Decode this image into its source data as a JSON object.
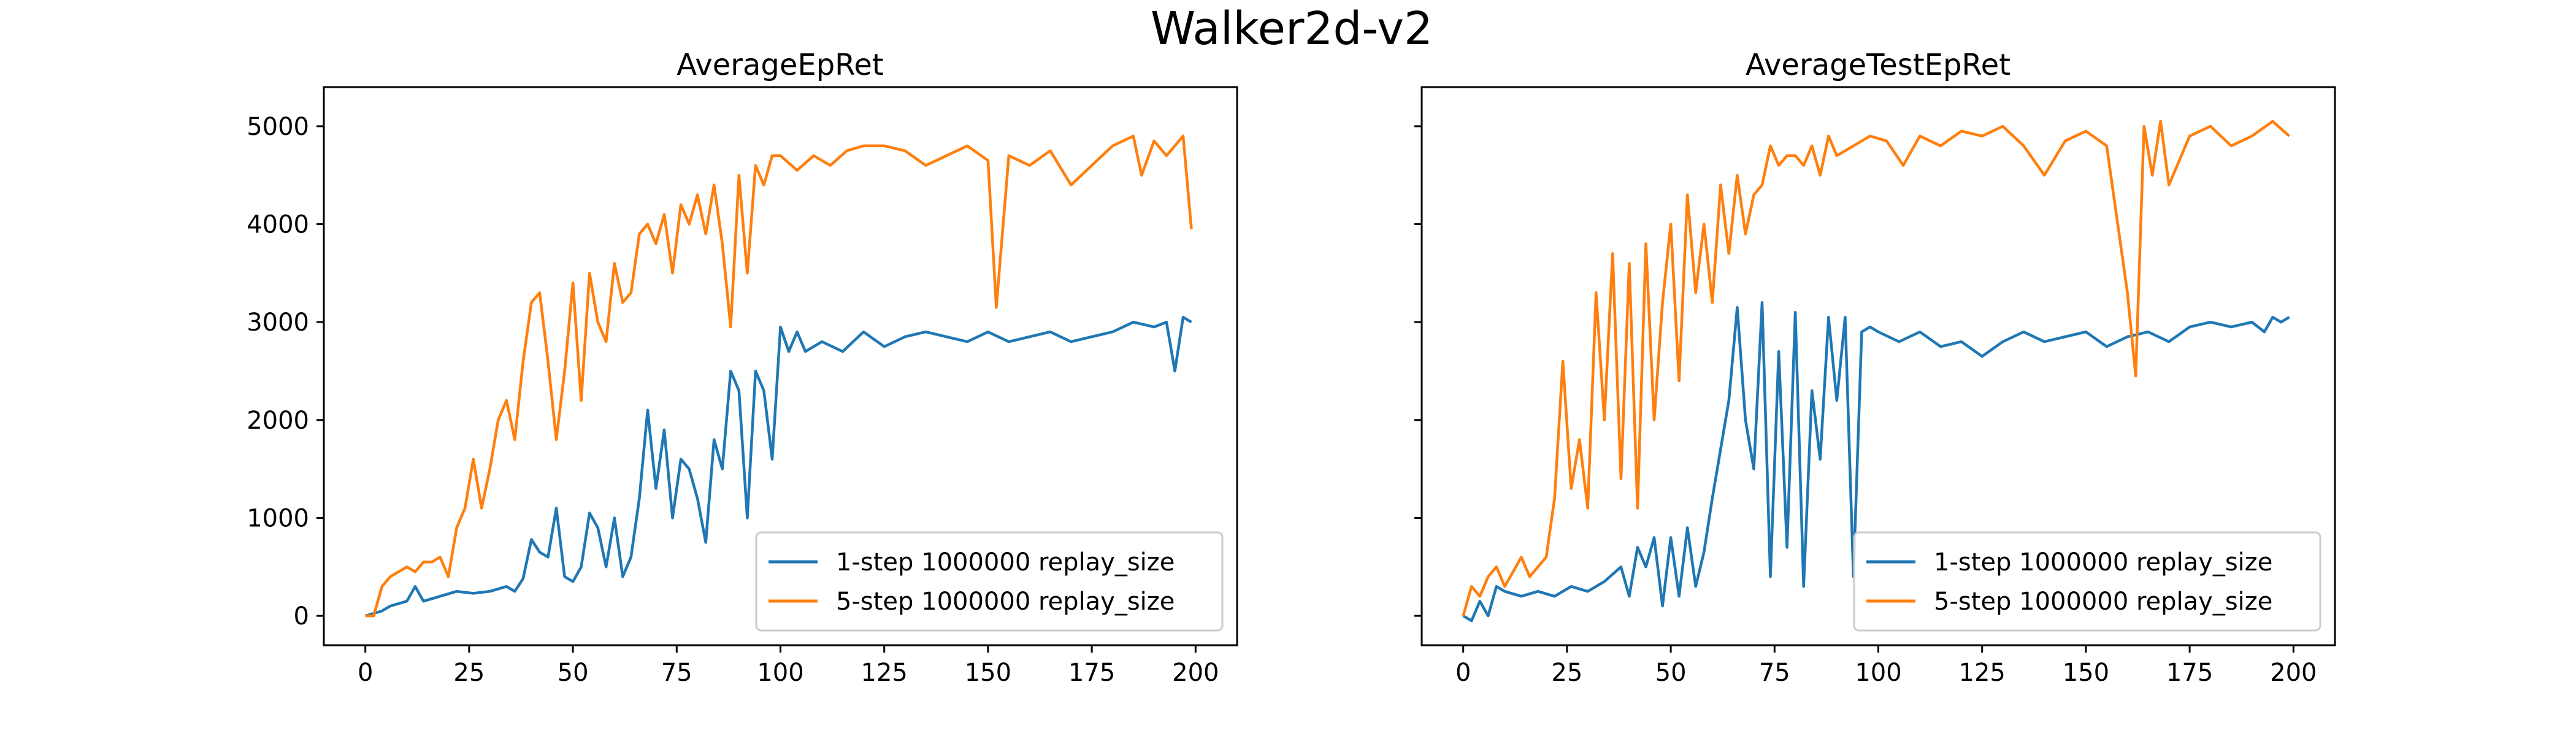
{
  "figure": {
    "title": "Walker2d-v2"
  },
  "chart_data": [
    {
      "type": "line",
      "title": "AverageEpRet",
      "xlabel": "",
      "ylabel": "",
      "xlim": [
        -10,
        210
      ],
      "ylim": [
        -300,
        5400
      ],
      "xticks": [
        0,
        25,
        50,
        75,
        100,
        125,
        150,
        175,
        200
      ],
      "yticks": [
        0,
        1000,
        2000,
        3000,
        4000,
        5000
      ],
      "xtick_labels": [
        "0",
        "25",
        "50",
        "75",
        "100",
        "125",
        "150",
        "175",
        "200"
      ],
      "ytick_labels": [
        "0",
        "1000",
        "2000",
        "3000",
        "4000",
        "5000"
      ],
      "legend_position": "lower-right",
      "series": [
        {
          "name": "1-step 1000000 replay_size",
          "color": "#1f77b4",
          "x": [
            0,
            4,
            6,
            10,
            12,
            14,
            18,
            22,
            26,
            30,
            34,
            36,
            38,
            40,
            42,
            44,
            46,
            48,
            50,
            52,
            54,
            56,
            58,
            60,
            62,
            64,
            66,
            68,
            70,
            72,
            74,
            76,
            78,
            80,
            82,
            84,
            86,
            88,
            90,
            92,
            94,
            96,
            98,
            100,
            102,
            104,
            106,
            110,
            115,
            120,
            125,
            130,
            135,
            140,
            145,
            150,
            155,
            160,
            165,
            170,
            175,
            180,
            185,
            190,
            193,
            195,
            197,
            199
          ],
          "values": [
            0,
            50,
            100,
            150,
            300,
            150,
            200,
            250,
            230,
            250,
            300,
            250,
            380,
            780,
            650,
            600,
            1100,
            400,
            350,
            500,
            1050,
            900,
            500,
            1000,
            400,
            600,
            1200,
            2100,
            1300,
            1900,
            1000,
            1600,
            1500,
            1200,
            750,
            1800,
            1500,
            2500,
            2300,
            1000,
            2500,
            2300,
            1600,
            2950,
            2700,
            2900,
            2700,
            2800,
            2700,
            2900,
            2750,
            2850,
            2900,
            2850,
            2800,
            2900,
            2800,
            2850,
            2900,
            2800,
            2850,
            2900,
            3000,
            2950,
            3000,
            2500,
            3050,
            3000
          ]
        },
        {
          "name": "5-step 1000000 replay_size",
          "color": "#ff7f0e",
          "x": [
            0,
            2,
            4,
            6,
            8,
            10,
            12,
            14,
            16,
            18,
            20,
            22,
            24,
            26,
            28,
            30,
            32,
            34,
            36,
            38,
            40,
            42,
            44,
            46,
            48,
            50,
            52,
            54,
            56,
            58,
            60,
            62,
            64,
            66,
            68,
            70,
            72,
            74,
            76,
            78,
            80,
            82,
            84,
            86,
            88,
            90,
            92,
            94,
            96,
            98,
            100,
            104,
            108,
            112,
            116,
            120,
            125,
            130,
            135,
            140,
            145,
            150,
            152,
            155,
            160,
            165,
            170,
            175,
            180,
            185,
            187,
            190,
            193,
            195,
            197,
            199
          ],
          "values": [
            0,
            0,
            300,
            400,
            450,
            500,
            450,
            550,
            550,
            600,
            400,
            900,
            1100,
            1600,
            1100,
            1500,
            2000,
            2200,
            1800,
            2600,
            3200,
            3300,
            2600,
            1800,
            2500,
            3400,
            2200,
            3500,
            3000,
            2800,
            3600,
            3200,
            3300,
            3900,
            4000,
            3800,
            4100,
            3500,
            4200,
            4000,
            4300,
            3900,
            4400,
            3800,
            2950,
            4500,
            3500,
            4600,
            4400,
            4700,
            4700,
            4550,
            4700,
            4600,
            4750,
            4800,
            4800,
            4750,
            4600,
            4700,
            4800,
            4650,
            3150,
            4700,
            4600,
            4750,
            4400,
            4600,
            4800,
            4900,
            4500,
            4850,
            4700,
            4800,
            4900,
            3950
          ]
        }
      ]
    },
    {
      "type": "line",
      "title": "AverageTestEpRet",
      "xlabel": "",
      "ylabel": "",
      "xlim": [
        -10,
        210
      ],
      "ylim": [
        -300,
        5400
      ],
      "xticks": [
        0,
        25,
        50,
        75,
        100,
        125,
        150,
        175,
        200
      ],
      "yticks": [
        0,
        1000,
        2000,
        3000,
        4000,
        5000
      ],
      "xtick_labels": [
        "0",
        "25",
        "50",
        "75",
        "100",
        "125",
        "150",
        "175",
        "200"
      ],
      "ytick_labels": [
        "",
        "",
        "",
        "",
        "",
        ""
      ],
      "legend_position": "lower-right",
      "series": [
        {
          "name": "1-step 1000000 replay_size",
          "color": "#1f77b4",
          "x": [
            0,
            2,
            4,
            6,
            8,
            10,
            14,
            18,
            22,
            26,
            30,
            34,
            38,
            40,
            42,
            44,
            46,
            48,
            50,
            52,
            54,
            56,
            58,
            60,
            62,
            64,
            66,
            68,
            70,
            72,
            74,
            76,
            78,
            80,
            82,
            84,
            86,
            88,
            90,
            92,
            94,
            96,
            98,
            100,
            105,
            110,
            115,
            120,
            125,
            130,
            135,
            140,
            145,
            150,
            155,
            160,
            165,
            170,
            175,
            180,
            185,
            190,
            193,
            195,
            197,
            199
          ],
          "values": [
            0,
            -50,
            150,
            0,
            300,
            250,
            200,
            250,
            200,
            300,
            250,
            350,
            500,
            200,
            700,
            500,
            800,
            100,
            800,
            200,
            900,
            300,
            650,
            1200,
            1700,
            2200,
            3150,
            2000,
            1500,
            3200,
            400,
            2700,
            700,
            3100,
            300,
            2300,
            1600,
            3050,
            2200,
            3050,
            400,
            2900,
            2950,
            2900,
            2800,
            2900,
            2750,
            2800,
            2650,
            2800,
            2900,
            2800,
            2850,
            2900,
            2750,
            2850,
            2900,
            2800,
            2950,
            3000,
            2950,
            3000,
            2900,
            3050,
            3000,
            3050
          ]
        },
        {
          "name": "5-step 1000000 replay_size",
          "color": "#ff7f0e",
          "x": [
            0,
            2,
            4,
            6,
            8,
            10,
            12,
            14,
            16,
            18,
            20,
            22,
            24,
            26,
            28,
            30,
            32,
            34,
            36,
            38,
            40,
            42,
            44,
            46,
            48,
            50,
            52,
            54,
            56,
            58,
            60,
            62,
            64,
            66,
            68,
            70,
            72,
            74,
            76,
            78,
            80,
            82,
            84,
            86,
            88,
            90,
            94,
            98,
            102,
            106,
            110,
            115,
            120,
            125,
            130,
            135,
            140,
            145,
            150,
            155,
            160,
            162,
            164,
            166,
            168,
            170,
            175,
            180,
            185,
            190,
            195,
            199
          ],
          "values": [
            0,
            300,
            200,
            400,
            500,
            300,
            450,
            600,
            400,
            500,
            600,
            1200,
            2600,
            1300,
            1800,
            1100,
            3300,
            2000,
            3700,
            1400,
            3600,
            1100,
            3800,
            2000,
            3200,
            4000,
            2400,
            4300,
            3300,
            4000,
            3200,
            4400,
            3700,
            4500,
            3900,
            4300,
            4400,
            4800,
            4600,
            4700,
            4700,
            4600,
            4800,
            4500,
            4900,
            4700,
            4800,
            4900,
            4850,
            4600,
            4900,
            4800,
            4950,
            4900,
            5000,
            4800,
            4500,
            4850,
            4950,
            4800,
            3300,
            2450,
            5000,
            4500,
            5050,
            4400,
            4900,
            5000,
            4800,
            4900,
            5050,
            4900
          ]
        }
      ]
    }
  ]
}
